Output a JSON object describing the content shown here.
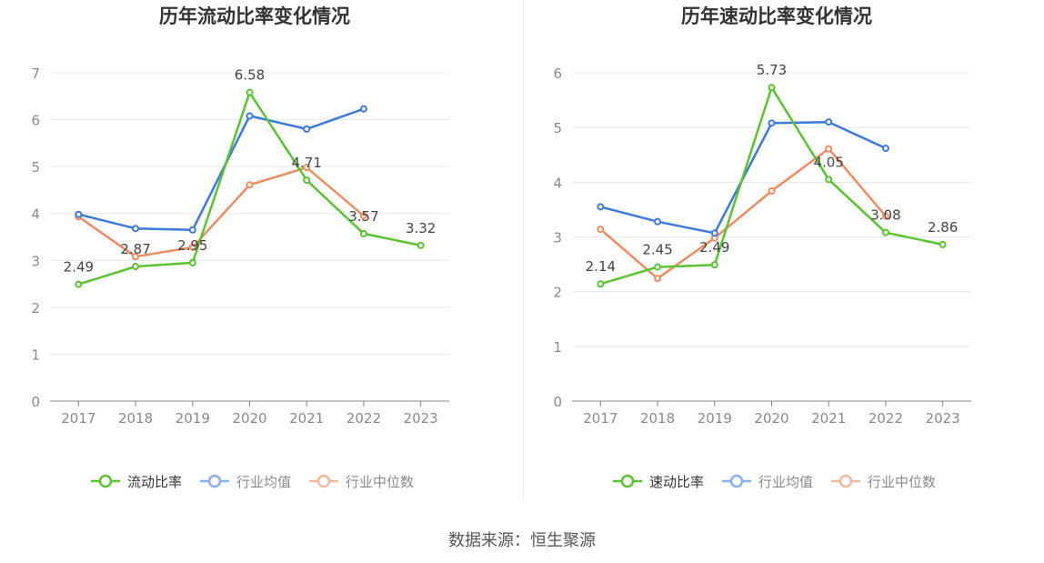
{
  "source": "数据来源：恒生聚源",
  "colors": {
    "company": "#5ac42f",
    "industry_avg": "#3d78de",
    "industry_median": "#f08b5f"
  },
  "chart_data": [
    {
      "type": "line",
      "title": "历年流动比率变化情况",
      "x": [
        "2017",
        "2018",
        "2019",
        "2020",
        "2021",
        "2022",
        "2023"
      ],
      "ylim": [
        0,
        7
      ],
      "yticks": [
        "0",
        "1",
        "2",
        "3",
        "4",
        "5",
        "6",
        "7"
      ],
      "grid": true,
      "legend_position": "bottom",
      "series": [
        {
          "name": "流动比率",
          "values": [
            2.49,
            2.87,
            2.95,
            6.58,
            4.71,
            3.57,
            3.32
          ],
          "labels": [
            "2.49",
            "2.87",
            "2.95",
            "6.58",
            "4.71",
            "3.57",
            "3.32"
          ]
        },
        {
          "name": "行业均值",
          "values": [
            3.98,
            3.68,
            3.65,
            6.08,
            5.8,
            6.23,
            null
          ]
        },
        {
          "name": "行业中位数",
          "values": [
            3.93,
            3.08,
            3.28,
            4.61,
            4.98,
            3.95,
            null
          ]
        }
      ]
    },
    {
      "type": "line",
      "title": "历年速动比率变化情况",
      "x": [
        "2017",
        "2018",
        "2019",
        "2020",
        "2021",
        "2022",
        "2023"
      ],
      "ylim": [
        0,
        6
      ],
      "yticks": [
        "0",
        "1",
        "2",
        "3",
        "4",
        "5",
        "6"
      ],
      "grid": true,
      "legend_position": "bottom",
      "series": [
        {
          "name": "速动比率",
          "values": [
            2.14,
            2.45,
            2.49,
            5.73,
            4.05,
            3.08,
            2.86
          ],
          "labels": [
            "2.14",
            "2.45",
            "2.49",
            "5.73",
            "4.05",
            "3.08",
            "2.86"
          ]
        },
        {
          "name": "行业均值",
          "values": [
            3.55,
            3.28,
            3.07,
            5.08,
            5.1,
            4.62,
            null
          ]
        },
        {
          "name": "行业中位数",
          "values": [
            3.14,
            2.24,
            2.98,
            3.84,
            4.61,
            3.38,
            null
          ]
        }
      ]
    }
  ]
}
